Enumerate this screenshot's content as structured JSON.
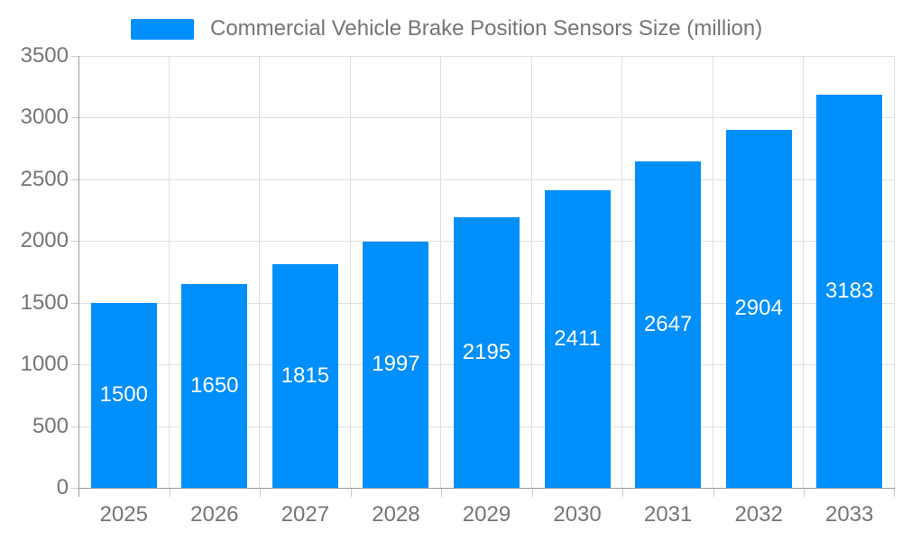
{
  "legend": {
    "label": "Commercial Vehicle Brake Position Sensors Size (million)"
  },
  "colors": {
    "bar": "#008FFB",
    "axis_line": "#999999",
    "grid_line": "#e0e0e0",
    "tick": "#cccccc",
    "axis_label_text": "#757575",
    "bar_label_text": "#ffffff"
  },
  "chart_data": {
    "type": "bar",
    "title": "Commercial Vehicle Brake Position Sensors Size (million)",
    "categories": [
      "2025",
      "2026",
      "2027",
      "2028",
      "2029",
      "2030",
      "2031",
      "2032",
      "2033"
    ],
    "values": [
      1500,
      1650,
      1815,
      1997,
      2195,
      2411,
      2647,
      2904,
      3183
    ],
    "xlabel": "",
    "ylabel": "",
    "ylim": [
      0,
      3500
    ],
    "yticks": [
      0,
      500,
      1000,
      1500,
      2000,
      2500,
      3000,
      3500
    ],
    "grid": true,
    "legend_position": "top",
    "bar_labels": "inside-center"
  }
}
